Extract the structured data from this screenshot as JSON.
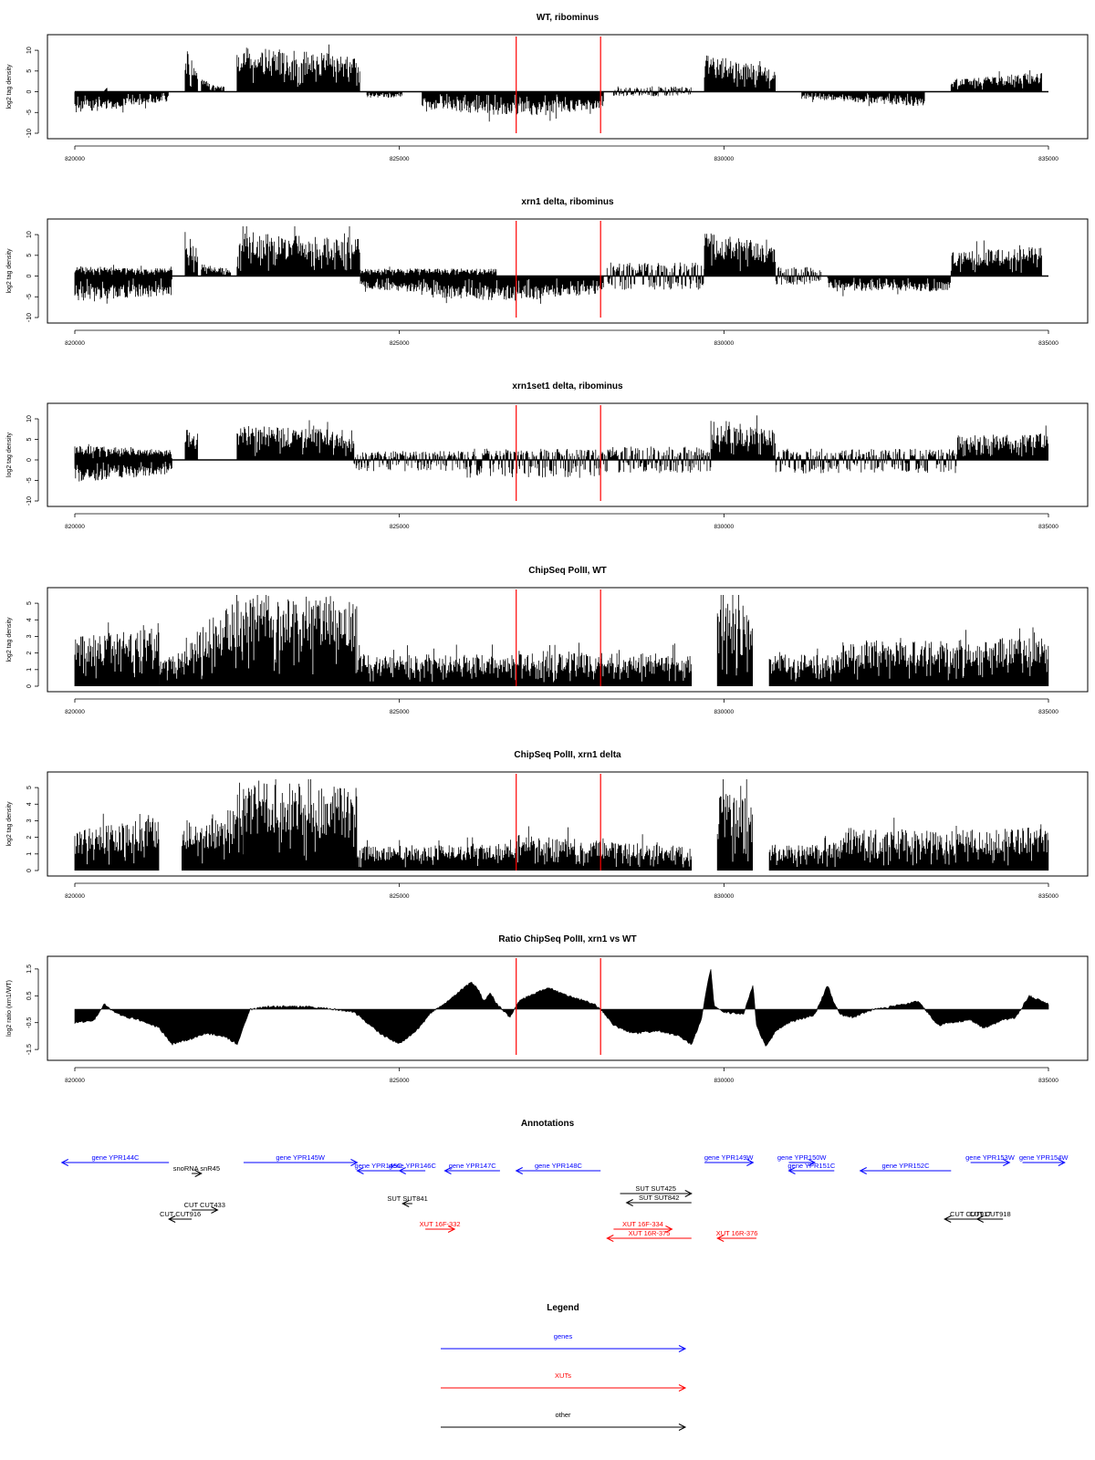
{
  "chart_data": [
    {
      "type": "bar",
      "title": "WT, ribominus",
      "ylabel": "log2 tag density",
      "xlim": [
        820000,
        835000
      ],
      "ylim": [
        -10,
        12
      ],
      "x_ticks": [
        "820000",
        "825000",
        "830000",
        "835000"
      ],
      "y_ticks": [
        "10",
        "5",
        "0",
        "-5",
        "-10"
      ],
      "marker_lines": [
        826800,
        828100
      ],
      "segments": [
        {
          "x": [
            820000,
            821450
          ],
          "y": [
            -4.5,
            -2.0
          ],
          "dir": "neg"
        },
        {
          "x": [
            820450,
            820500
          ],
          "y": [
            0,
            1.5
          ],
          "dir": "pos"
        },
        {
          "x": [
            821700,
            821900
          ],
          "y": [
            9.5,
            5.0
          ],
          "dir": "pos"
        },
        {
          "x": [
            821950,
            822300
          ],
          "y": [
            2.5,
            1.0
          ],
          "dir": "pos"
        },
        {
          "x": [
            822500,
            824400
          ],
          "y": [
            9.0,
            7.5
          ],
          "dir": "pos"
        },
        {
          "x": [
            824500,
            825050
          ],
          "y": [
            -1.5,
            -1.0
          ],
          "dir": "neg"
        },
        {
          "x": [
            825350,
            826850
          ],
          "y": [
            -3.5,
            -5.0
          ],
          "dir": "neg"
        },
        {
          "x": [
            826850,
            828150
          ],
          "y": [
            -5.0,
            -3.5
          ],
          "dir": "neg"
        },
        {
          "x": [
            828300,
            829500
          ],
          "y": [
            1.2,
            -1.0
          ],
          "dir": "both"
        },
        {
          "x": [
            829700,
            830800
          ],
          "y": [
            7.5,
            5.0
          ],
          "dir": "pos"
        },
        {
          "x": [
            831200,
            833100
          ],
          "y": [
            -1.5,
            -3.0
          ],
          "dir": "neg"
        },
        {
          "x": [
            833500,
            834900
          ],
          "y": [
            2.5,
            4.0
          ],
          "dir": "pos"
        }
      ]
    },
    {
      "type": "bar",
      "title": "xrn1 delta, ribominus",
      "ylabel": "log2 tag density",
      "xlim": [
        820000,
        835000
      ],
      "ylim": [
        -10,
        12
      ],
      "x_ticks": [
        "820000",
        "825000",
        "830000",
        "835000"
      ],
      "y_ticks": [
        "10",
        "5",
        "0",
        "-5",
        "-10"
      ],
      "marker_lines": [
        826800,
        828100
      ],
      "segments": [
        {
          "x": [
            820000,
            821500
          ],
          "y": [
            -5.0,
            -4.0
          ],
          "dir": "neg"
        },
        {
          "x": [
            820000,
            821500
          ],
          "y": [
            2.0,
            1.5
          ],
          "dir": "pos"
        },
        {
          "x": [
            821700,
            821900
          ],
          "y": [
            9.5,
            5.0
          ],
          "dir": "pos"
        },
        {
          "x": [
            821950,
            822400
          ],
          "y": [
            2.5,
            1.5
          ],
          "dir": "pos"
        },
        {
          "x": [
            822500,
            824400
          ],
          "y": [
            9.0,
            7.5
          ],
          "dir": "pos"
        },
        {
          "x": [
            824400,
            825500
          ],
          "y": [
            -2.5,
            -3.5
          ],
          "dir": "neg"
        },
        {
          "x": [
            824400,
            826500
          ],
          "y": [
            1.5,
            1.5
          ],
          "dir": "pos"
        },
        {
          "x": [
            825500,
            826850
          ],
          "y": [
            -4.5,
            -5.0
          ],
          "dir": "neg"
        },
        {
          "x": [
            826850,
            828150
          ],
          "y": [
            -5.0,
            -3.5
          ],
          "dir": "neg"
        },
        {
          "x": [
            828200,
            829700
          ],
          "y": [
            3.0,
            -3.0
          ],
          "dir": "both"
        },
        {
          "x": [
            829700,
            830800
          ],
          "y": [
            9.0,
            6.5
          ],
          "dir": "pos"
        },
        {
          "x": [
            830800,
            831500
          ],
          "y": [
            2.0,
            -2.0
          ],
          "dir": "both"
        },
        {
          "x": [
            831600,
            833500
          ],
          "y": [
            -3.0,
            -3.0
          ],
          "dir": "neg"
        },
        {
          "x": [
            833500,
            834900
          ],
          "y": [
            5.0,
            6.0
          ],
          "dir": "pos"
        }
      ]
    },
    {
      "type": "bar",
      "title": "xrn1set1 delta, ribominus",
      "ylabel": "log2 tag density",
      "xlim": [
        820000,
        835000
      ],
      "ylim": [
        -10,
        12
      ],
      "x_ticks": [
        "820000",
        "825000",
        "830000",
        "835000"
      ],
      "y_ticks": [
        "10",
        "5",
        "0",
        "-5",
        "-10"
      ],
      "marker_lines": [
        826800,
        828100
      ],
      "segments": [
        {
          "x": [
            820000,
            821500
          ],
          "y": [
            -4.5,
            -3.0
          ],
          "dir": "neg"
        },
        {
          "x": [
            820000,
            821500
          ],
          "y": [
            3.0,
            2.0
          ],
          "dir": "pos"
        },
        {
          "x": [
            821700,
            821900
          ],
          "y": [
            7.0,
            4.0
          ],
          "dir": "pos"
        },
        {
          "x": [
            822500,
            824300
          ],
          "y": [
            7.0,
            6.0
          ],
          "dir": "pos"
        },
        {
          "x": [
            824300,
            826000
          ],
          "y": [
            2.0,
            -2.5
          ],
          "dir": "both"
        },
        {
          "x": [
            826000,
            828200
          ],
          "y": [
            2.5,
            -4.0
          ],
          "dir": "both"
        },
        {
          "x": [
            828200,
            829800
          ],
          "y": [
            3.0,
            -3.0
          ],
          "dir": "both"
        },
        {
          "x": [
            829800,
            830800
          ],
          "y": [
            8.5,
            6.0
          ],
          "dir": "pos"
        },
        {
          "x": [
            830800,
            833600
          ],
          "y": [
            2.5,
            -3.0
          ],
          "dir": "both"
        },
        {
          "x": [
            833600,
            835000
          ],
          "y": [
            5.0,
            5.5
          ],
          "dir": "pos"
        }
      ]
    },
    {
      "type": "bar",
      "title": "ChipSeq PolII, WT",
      "ylabel": "log2 tag density",
      "xlim": [
        820000,
        835000
      ],
      "ylim": [
        0,
        5.5
      ],
      "x_ticks": [
        "820000",
        "825000",
        "830000",
        "835000"
      ],
      "y_ticks": [
        "5",
        "4",
        "3",
        "2",
        "1",
        "0"
      ],
      "marker_lines": [
        826800,
        828100
      ],
      "segments": [
        {
          "x": [
            820000,
            821300
          ],
          "y": [
            2.5,
            3.2
          ],
          "dir": "pos"
        },
        {
          "x": [
            821300,
            821650
          ],
          "y": [
            1.5,
            1.5
          ],
          "dir": "pos"
        },
        {
          "x": [
            821650,
            822600
          ],
          "y": [
            2.5,
            4.5
          ],
          "dir": "pos"
        },
        {
          "x": [
            822600,
            824350
          ],
          "y": [
            4.7,
            4.5
          ],
          "dir": "pos"
        },
        {
          "x": [
            824350,
            826800
          ],
          "y": [
            1.6,
            1.6
          ],
          "dir": "pos"
        },
        {
          "x": [
            826800,
            829500
          ],
          "y": [
            1.8,
            1.6
          ],
          "dir": "pos"
        },
        {
          "x": [
            829900,
            830450
          ],
          "y": [
            4.3,
            4.0
          ],
          "dir": "pos"
        },
        {
          "x": [
            830700,
            831800
          ],
          "y": [
            1.6,
            1.6
          ],
          "dir": "pos"
        },
        {
          "x": [
            831800,
            833400
          ],
          "y": [
            2.3,
            2.3
          ],
          "dir": "pos"
        },
        {
          "x": [
            833400,
            835000
          ],
          "y": [
            2.3,
            2.5
          ],
          "dir": "pos"
        }
      ]
    },
    {
      "type": "bar",
      "title": "ChipSeq PolII, xrn1 delta",
      "ylabel": "log2 tag density",
      "xlim": [
        820000,
        835000
      ],
      "ylim": [
        0,
        5.5
      ],
      "x_ticks": [
        "820000",
        "825000",
        "830000",
        "835000"
      ],
      "y_ticks": [
        "5",
        "4",
        "3",
        "2",
        "1",
        "0"
      ],
      "marker_lines": [
        826800,
        828100
      ],
      "segments": [
        {
          "x": [
            820000,
            821300
          ],
          "y": [
            2.0,
            2.7
          ],
          "dir": "pos"
        },
        {
          "x": [
            821650,
            822600
          ],
          "y": [
            2.0,
            3.8
          ],
          "dir": "pos"
        },
        {
          "x": [
            822600,
            824350
          ],
          "y": [
            4.6,
            4.2
          ],
          "dir": "pos"
        },
        {
          "x": [
            824350,
            826800
          ],
          "y": [
            1.2,
            1.4
          ],
          "dir": "pos"
        },
        {
          "x": [
            826800,
            829500
          ],
          "y": [
            1.8,
            1.2
          ],
          "dir": "pos"
        },
        {
          "x": [
            829900,
            830450
          ],
          "y": [
            4.1,
            3.5
          ],
          "dir": "pos"
        },
        {
          "x": [
            830700,
            831800
          ],
          "y": [
            1.3,
            1.3
          ],
          "dir": "pos"
        },
        {
          "x": [
            831800,
            833400
          ],
          "y": [
            2.2,
            2.0
          ],
          "dir": "pos"
        },
        {
          "x": [
            833400,
            835000
          ],
          "y": [
            2.0,
            2.2
          ],
          "dir": "pos"
        }
      ]
    },
    {
      "type": "area",
      "title": "Ratio ChipSeq PolII, xrn1 vs WT",
      "ylabel": "log2 ratio (xrn1/WT)",
      "xlim": [
        820000,
        835000
      ],
      "ylim": [
        -1.7,
        1.7
      ],
      "x_ticks": [
        "820000",
        "825000",
        "830000",
        "835000"
      ],
      "y_ticks": [
        "1.5",
        "0.5",
        "-0.5",
        "-1.5"
      ],
      "marker_lines": [
        826800,
        828100
      ],
      "x": [
        820000,
        820300,
        820450,
        820600,
        820800,
        821000,
        821300,
        821500,
        821800,
        822000,
        822300,
        822500,
        822700,
        823000,
        823500,
        824000,
        824300,
        824500,
        824700,
        825000,
        825300,
        825500,
        825700,
        825900,
        826100,
        826200,
        826300,
        826400,
        826500,
        826700,
        826850,
        827000,
        827300,
        827600,
        828000,
        828100,
        828300,
        828600,
        829000,
        829300,
        829500,
        829650,
        829750,
        829800,
        829850,
        830000,
        830300,
        830450,
        830500,
        830650,
        830700,
        830800,
        831000,
        831400,
        831600,
        831700,
        831800,
        832000,
        832300,
        832600,
        833000,
        833300,
        833500,
        833800,
        834000,
        834300,
        834500,
        834700,
        835000
      ],
      "y": [
        -0.5,
        -0.4,
        0.2,
        -0.1,
        -0.3,
        -0.4,
        -0.7,
        -1.3,
        -1.1,
        -0.9,
        -1.0,
        -1.3,
        0.0,
        0.1,
        0.1,
        0.0,
        -0.1,
        -0.5,
        -0.9,
        -1.3,
        -0.7,
        -0.1,
        0.2,
        0.6,
        1.0,
        0.8,
        0.3,
        0.6,
        0.2,
        -0.3,
        0.3,
        0.5,
        0.8,
        0.5,
        0.2,
        0.0,
        -0.6,
        -0.9,
        -0.8,
        -1.0,
        -1.3,
        -0.4,
        1.0,
        1.5,
        0.1,
        -0.1,
        -0.2,
        0.9,
        -0.6,
        -1.4,
        -1.2,
        -0.8,
        -0.5,
        -0.2,
        0.9,
        0.2,
        -0.2,
        -0.3,
        0.0,
        0.1,
        0.3,
        -0.6,
        -0.5,
        -0.4,
        -0.7,
        -0.4,
        -0.3,
        0.5,
        0.2
      ]
    }
  ],
  "annotations": {
    "title": "Annotations",
    "features": [
      {
        "label": "gene YPR144C",
        "start": 821450,
        "end": 819800,
        "row": 0,
        "kind": "gene"
      },
      {
        "label": "gene YPR145W",
        "start": 822600,
        "end": 824350,
        "row": 0,
        "kind": "gene"
      },
      {
        "label": "gene YPR145C",
        "start": 825000,
        "end": 824350,
        "row": 1,
        "kind": "gene"
      },
      {
        "label": "gene YPR146C",
        "start": 825400,
        "end": 825000,
        "row": 1,
        "kind": "gene"
      },
      {
        "label": "gene YPR147C",
        "start": 826550,
        "end": 825700,
        "row": 1,
        "kind": "gene"
      },
      {
        "label": "gene YPR148C",
        "start": 828100,
        "end": 826800,
        "row": 1,
        "kind": "gene"
      },
      {
        "label": "gene YPR149W",
        "start": 829700,
        "end": 830450,
        "row": 0,
        "kind": "gene"
      },
      {
        "label": "gene YPR150W",
        "start": 831000,
        "end": 831400,
        "row": 0,
        "kind": "gene"
      },
      {
        "label": "gene YPR151C",
        "start": 831700,
        "end": 831000,
        "row": 1,
        "kind": "gene"
      },
      {
        "label": "gene YPR152C",
        "start": 833500,
        "end": 832100,
        "row": 1,
        "kind": "gene"
      },
      {
        "label": "gene YPR153W",
        "start": 833800,
        "end": 834400,
        "row": 0,
        "kind": "gene"
      },
      {
        "label": "gene YPR154W",
        "start": 834600,
        "end": 835250,
        "row": 0,
        "kind": "gene"
      },
      {
        "label": "snoRNA snR45",
        "start": 821800,
        "end": 821950,
        "row": 2,
        "kind": "other"
      },
      {
        "label": "SUT SUT425",
        "start": 828400,
        "end": 829500,
        "row": 5,
        "kind": "other"
      },
      {
        "label": "SUT SUT842",
        "start": 829500,
        "end": 828500,
        "row": 6,
        "kind": "other"
      },
      {
        "label": "SUT SUT841",
        "start": 825200,
        "end": 825050,
        "row": 7,
        "kind": "other"
      },
      {
        "label": "CUT CUT433",
        "start": 821800,
        "end": 822200,
        "row": 9,
        "kind": "other"
      },
      {
        "label": "CUT CUT916",
        "start": 821800,
        "end": 821450,
        "row": 10,
        "kind": "other"
      },
      {
        "label": "CUT CUT917",
        "start": 834200,
        "end": 833400,
        "row": 10,
        "kind": "other"
      },
      {
        "label": "CUT CUT918",
        "start": 834300,
        "end": 833900,
        "row": 10,
        "kind": "other"
      },
      {
        "label": "XUT 16F-332",
        "start": 825400,
        "end": 825850,
        "row": 11,
        "kind": "xut"
      },
      {
        "label": "XUT 16F-334",
        "start": 828300,
        "end": 829200,
        "row": 11,
        "kind": "xut"
      },
      {
        "label": "XUT 16R-375",
        "start": 829500,
        "end": 828200,
        "row": 12,
        "kind": "xut"
      },
      {
        "label": "XUT 16R-376",
        "start": 830500,
        "end": 829900,
        "row": 12,
        "kind": "xut"
      }
    ]
  },
  "legend": {
    "title": "Legend",
    "items": [
      {
        "label": "genes",
        "color": "#0000ff"
      },
      {
        "label": "XUTs",
        "color": "#ff0000"
      },
      {
        "label": "other",
        "color": "#000000"
      }
    ]
  },
  "colors": {
    "bars": "#000000",
    "marker": "#ff0000",
    "gene": "#0000ff",
    "xut": "#ff0000",
    "other": "#000000"
  }
}
